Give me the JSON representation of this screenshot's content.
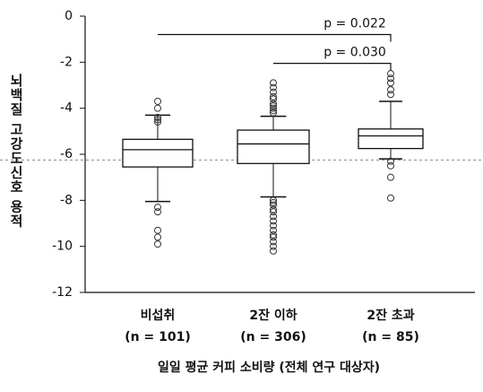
{
  "chart_data": {
    "type": "box",
    "y_label": "뇌백질 고강도신호 용적",
    "x_label": "일일 평균 커피 소비량 (전체 연구 대상자)",
    "categories": [
      "비섭취",
      "2잔 이하",
      "2잔 초과"
    ],
    "category_sublabels": [
      "(n = 101)",
      "(n = 306)",
      "(n = 85)"
    ],
    "boxes": [
      {
        "whisker_low": -8.05,
        "q1": -6.55,
        "median": -5.8,
        "q3": -5.35,
        "whisker_high": -4.3,
        "outliers": [
          -3.7,
          -4.0,
          -4.4,
          -4.5,
          -4.6,
          -8.3,
          -8.5,
          -9.3,
          -9.6,
          -9.9
        ]
      },
      {
        "whisker_low": -7.85,
        "q1": -6.4,
        "median": -5.55,
        "q3": -4.95,
        "whisker_high": -4.35,
        "outliers": [
          -2.9,
          -3.1,
          -3.3,
          -3.5,
          -3.6,
          -3.8,
          -3.9,
          -4.0,
          -4.1,
          -4.2,
          -8.0,
          -8.1,
          -8.2,
          -8.4,
          -8.5,
          -8.7,
          -8.9,
          -9.1,
          -9.3,
          -9.5,
          -9.6,
          -9.8,
          -10.0,
          -10.2
        ]
      },
      {
        "whisker_low": -6.2,
        "q1": -5.75,
        "median": -5.2,
        "q3": -4.9,
        "whisker_high": -3.7,
        "outliers": [
          -2.5,
          -2.7,
          -2.9,
          -3.2,
          -3.4,
          -6.3,
          -6.5,
          -7.0,
          -7.9
        ]
      }
    ],
    "reference_line": -6.25,
    "brackets": [
      {
        "from": "비섭취",
        "to": "2잔 초과",
        "y": -0.8,
        "label": "p = 0.022"
      },
      {
        "from": "2잔 이하",
        "to": "2잔 초과",
        "y": -2.05,
        "label": "p = 0.030"
      }
    ],
    "ylim": [
      -12,
      0
    ],
    "yticks": [
      0,
      -2,
      -4,
      -6,
      -8,
      -10,
      -12
    ]
  }
}
